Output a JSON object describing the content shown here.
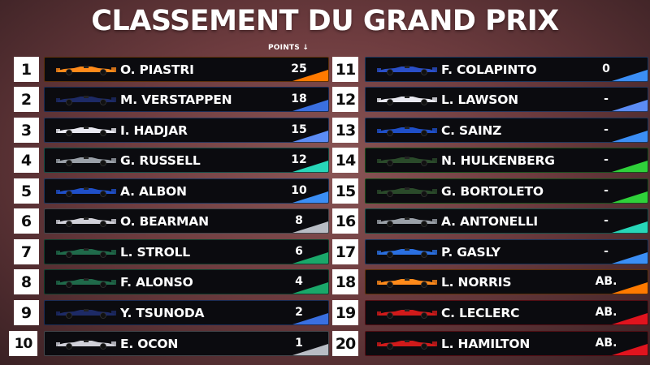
{
  "title": "CLASSEMENT DU GRAND PRIX",
  "points_header": "POINTS ↓",
  "left": [
    {
      "pos": "1",
      "name": "O. PIASTRI",
      "points": "25",
      "color": "#ff7a00",
      "car": "#ff8a1a"
    },
    {
      "pos": "2",
      "name": "M. VERSTAPPEN",
      "points": "18",
      "color": "#3a6fe0",
      "car": "#1d2a66"
    },
    {
      "pos": "3",
      "name": "I. HADJAR",
      "points": "15",
      "color": "#5b8cf5",
      "car": "#e8e8f0"
    },
    {
      "pos": "4",
      "name": "G. RUSSELL",
      "points": "12",
      "color": "#27d6b8",
      "car": "#9aa0a8"
    },
    {
      "pos": "5",
      "name": "A. ALBON",
      "points": "10",
      "color": "#3b8ef5",
      "car": "#1f4fc8"
    },
    {
      "pos": "6",
      "name": "O. BEARMAN",
      "points": "8",
      "color": "#b8bcc4",
      "car": "#d0d0d8"
    },
    {
      "pos": "7",
      "name": "L. STROLL",
      "points": "6",
      "color": "#1aa86a",
      "car": "#1f6a4a"
    },
    {
      "pos": "8",
      "name": "F. ALONSO",
      "points": "4",
      "color": "#1aa86a",
      "car": "#1f6a4a"
    },
    {
      "pos": "9",
      "name": "Y. TSUNODA",
      "points": "2",
      "color": "#3a6fe0",
      "car": "#1d2a66"
    },
    {
      "pos": "10",
      "name": "E. OCON",
      "points": "1",
      "color": "#b8bcc4",
      "car": "#d0d0d8"
    }
  ],
  "right": [
    {
      "pos": "11",
      "name": "F. COLAPINTO",
      "points": "0",
      "color": "#3b8ef5",
      "car": "#2a4fc8"
    },
    {
      "pos": "12",
      "name": "L. LAWSON",
      "points": "-",
      "color": "#5b8cf5",
      "car": "#e8e8f0"
    },
    {
      "pos": "13",
      "name": "C. SAINZ",
      "points": "-",
      "color": "#3b8ef5",
      "car": "#1f4fc8"
    },
    {
      "pos": "14",
      "name": "N. HULKENBERG",
      "points": "-",
      "color": "#2fd13a",
      "car": "#2a4a2a"
    },
    {
      "pos": "15",
      "name": "G. BORTOLETO",
      "points": "-",
      "color": "#2fd13a",
      "car": "#2a4a2a"
    },
    {
      "pos": "16",
      "name": "A. ANTONELLI",
      "points": "-",
      "color": "#27d6b8",
      "car": "#9aa0a8"
    },
    {
      "pos": "17",
      "name": "P. GASLY",
      "points": "-",
      "color": "#3b8ef5",
      "car": "#2a6fe0"
    },
    {
      "pos": "18",
      "name": "L. NORRIS",
      "points": "AB.",
      "color": "#ff7a00",
      "car": "#ff8a1a"
    },
    {
      "pos": "19",
      "name": "C. LECLERC",
      "points": "AB.",
      "color": "#e0141e",
      "car": "#d01a1a"
    },
    {
      "pos": "20",
      "name": "L. HAMILTON",
      "points": "AB.",
      "color": "#e0141e",
      "car": "#d01a1a"
    }
  ]
}
